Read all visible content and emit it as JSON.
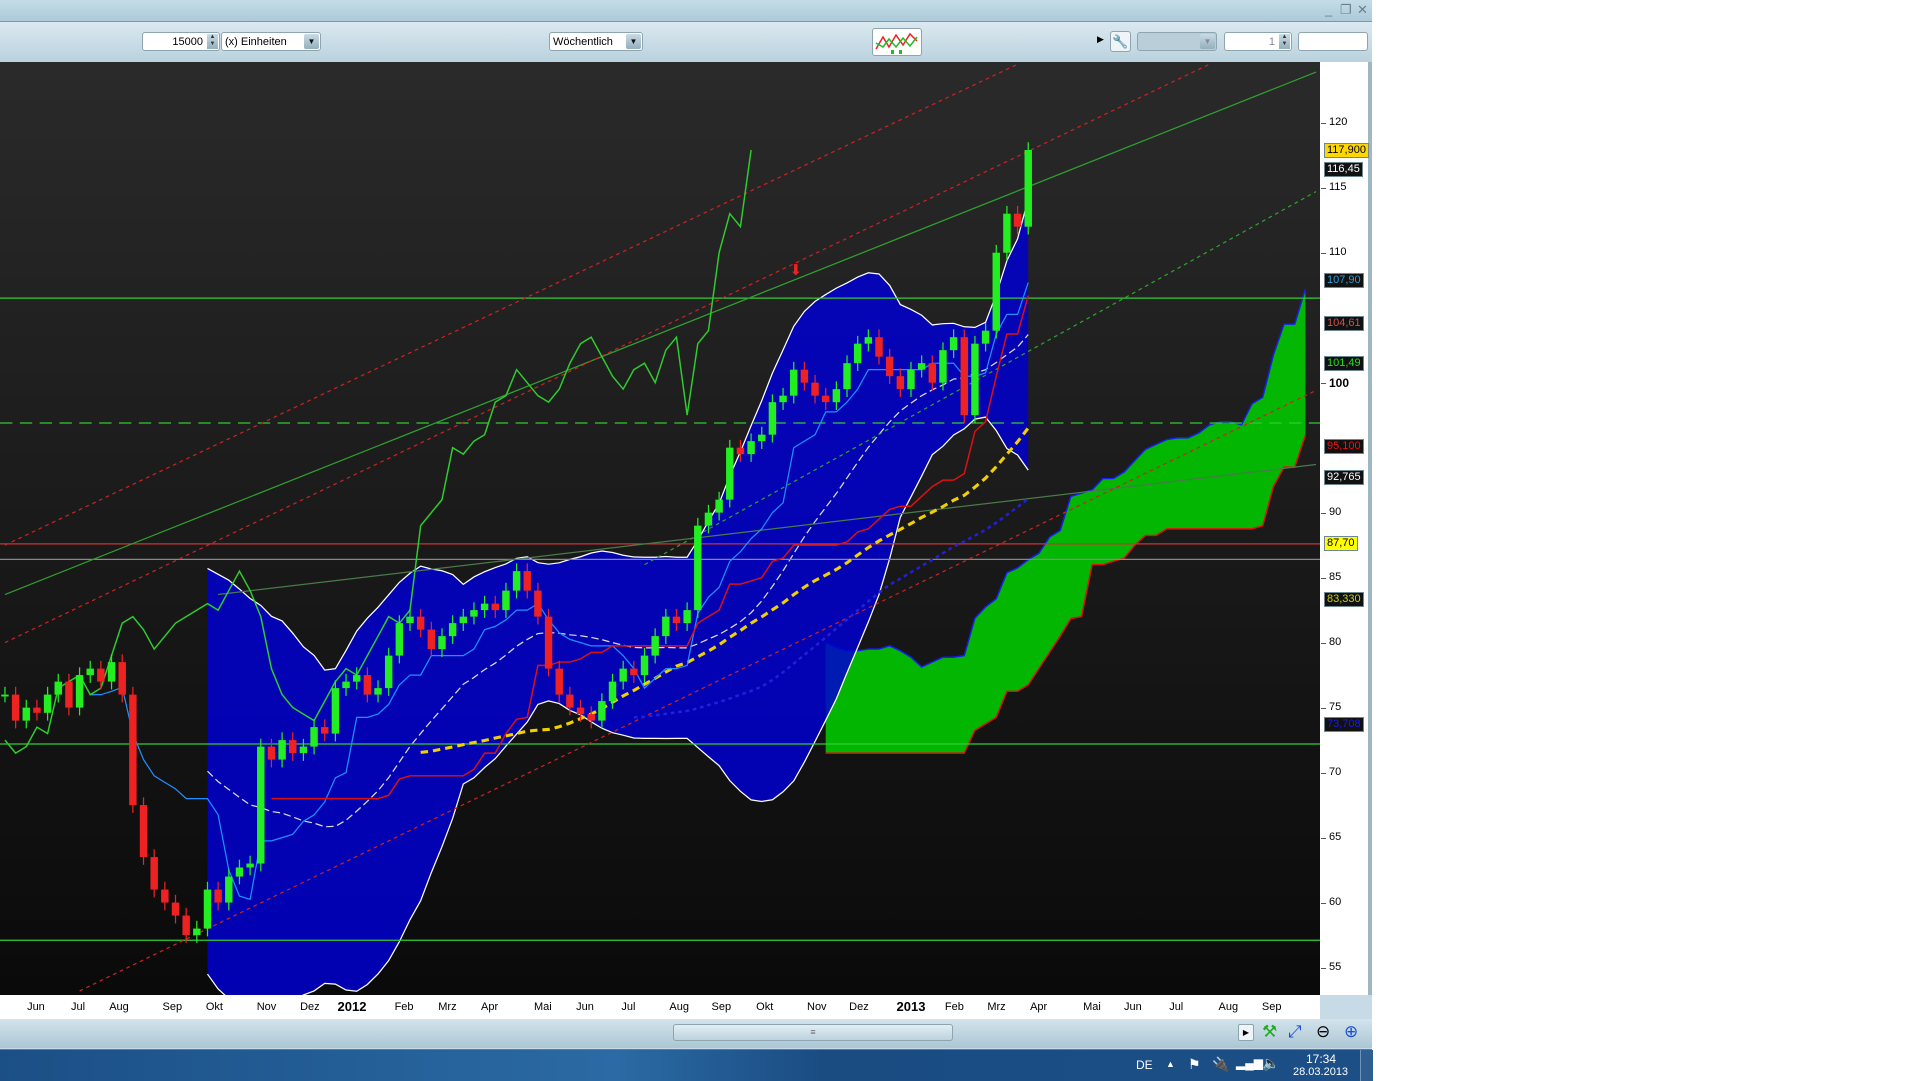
{
  "window": {
    "controls": {
      "minimize": "_",
      "restore": "❐",
      "close": "✕"
    }
  },
  "toolbar": {
    "quantity_value": "15000",
    "unit_select": "(x) Einheiten",
    "period_select": "Wöchentlich",
    "chart_type_icon": "indicator-chart-icon",
    "tools_icon": "wrench-icon",
    "disabled_select": "",
    "count_value": "1",
    "empty_field": ""
  },
  "colors": {
    "up": "#22dd22",
    "down": "#ee2222",
    "bands": "#0000cc",
    "cloud": "#00cc00",
    "background": "#141414"
  },
  "chart_data": {
    "type": "candlestick",
    "interval": "weekly",
    "closes": [
      76,
      74,
      75,
      74.6,
      76,
      77,
      75,
      77.5,
      78,
      77,
      78.5,
      76,
      67.5,
      63.5,
      61,
      60,
      59,
      57.5,
      58,
      61,
      60,
      62,
      62.7,
      63,
      72,
      71,
      72.5,
      71.5,
      72,
      73.5,
      73,
      76.5,
      77,
      77.5,
      76,
      76.5,
      79,
      81.5,
      82,
      81,
      79.5,
      80.5,
      81.5,
      82,
      82.5,
      83,
      82.5,
      84,
      85.5,
      84,
      82,
      78,
      76,
      75,
      74.5,
      74,
      75.5,
      77,
      78,
      77.5,
      79,
      80.5,
      82,
      81.5,
      82.5,
      89,
      90,
      91,
      95,
      94.5,
      95.5,
      96,
      98.5,
      99,
      101,
      100,
      99,
      98.5,
      99.5,
      101.5,
      103,
      103.5,
      102,
      100.5,
      99.5,
      101,
      101.5,
      100,
      102.5,
      103.5,
      97.5,
      103,
      104,
      110,
      113,
      112,
      117.9
    ],
    "y_ticks": [
      "120",
      "115",
      "110",
      "100",
      "90",
      "85",
      "80",
      "75",
      "70",
      "65",
      "60",
      "55"
    ],
    "y_range": [
      53,
      127
    ],
    "x_labels": [
      "Jun",
      "Jul",
      "Aug",
      "Sep",
      "Okt",
      "Nov",
      "Dez",
      "2012",
      "Feb",
      "Mrz",
      "Apr",
      "Mai",
      "Jun",
      "Jul",
      "Aug",
      "Sep",
      "Okt",
      "Nov",
      "Dez",
      "2013",
      "Feb",
      "Mrz",
      "Apr",
      "Mai",
      "Jun",
      "Jul",
      "Aug",
      "Sep"
    ],
    "horizontal_levels": [
      {
        "price": 106.5,
        "color": "#33cc33",
        "style": "solid"
      },
      {
        "price": 96.9,
        "color": "#33cc33",
        "style": "dashed"
      },
      {
        "price": 87.6,
        "color": "#cc3333",
        "style": "solid"
      },
      {
        "price": 86.4,
        "color": "#888888",
        "style": "solid"
      },
      {
        "price": 72.2,
        "color": "#33cc33",
        "style": "solid"
      },
      {
        "price": 57.1,
        "color": "#33cc33",
        "style": "solid"
      }
    ],
    "value_tags": [
      {
        "text": "117,900",
        "price": 117.9,
        "fg": "#000000",
        "bg": "#ffd700"
      },
      {
        "text": "116,45",
        "price": 116.45,
        "fg": "#ffffff",
        "bg": "#111111"
      },
      {
        "text": "107,90",
        "price": 107.9,
        "fg": "#2a9fd6",
        "bg": "#111111"
      },
      {
        "text": "104,61",
        "price": 104.61,
        "fg": "#d05050",
        "bg": "#111111"
      },
      {
        "text": "101,49",
        "price": 101.49,
        "fg": "#22dd22",
        "bg": "#111111"
      },
      {
        "text": "95,100",
        "price": 95.1,
        "fg": "#ee1111",
        "bg": "#111111"
      },
      {
        "text": "92,765",
        "price": 92.765,
        "fg": "#ffffff",
        "bg": "#111111"
      },
      {
        "text": "87,70",
        "price": 87.7,
        "fg": "#000000",
        "bg": "#ffff00"
      },
      {
        "text": "83,330",
        "price": 83.33,
        "fg": "#cccc00",
        "bg": "#111111"
      },
      {
        "text": "73,708",
        "price": 73.708,
        "fg": "#1a1aee",
        "bg": "#111111"
      }
    ]
  },
  "scrollbar": {
    "grip": "≡",
    "icons": [
      "scroll-right-icon",
      "chart-settings-icon",
      "zoom-fit-icon",
      "zoom-out-icon",
      "zoom-in-icon"
    ]
  },
  "taskbar": {
    "language": "DE",
    "time": "17:34",
    "date": "28.03.2013"
  }
}
